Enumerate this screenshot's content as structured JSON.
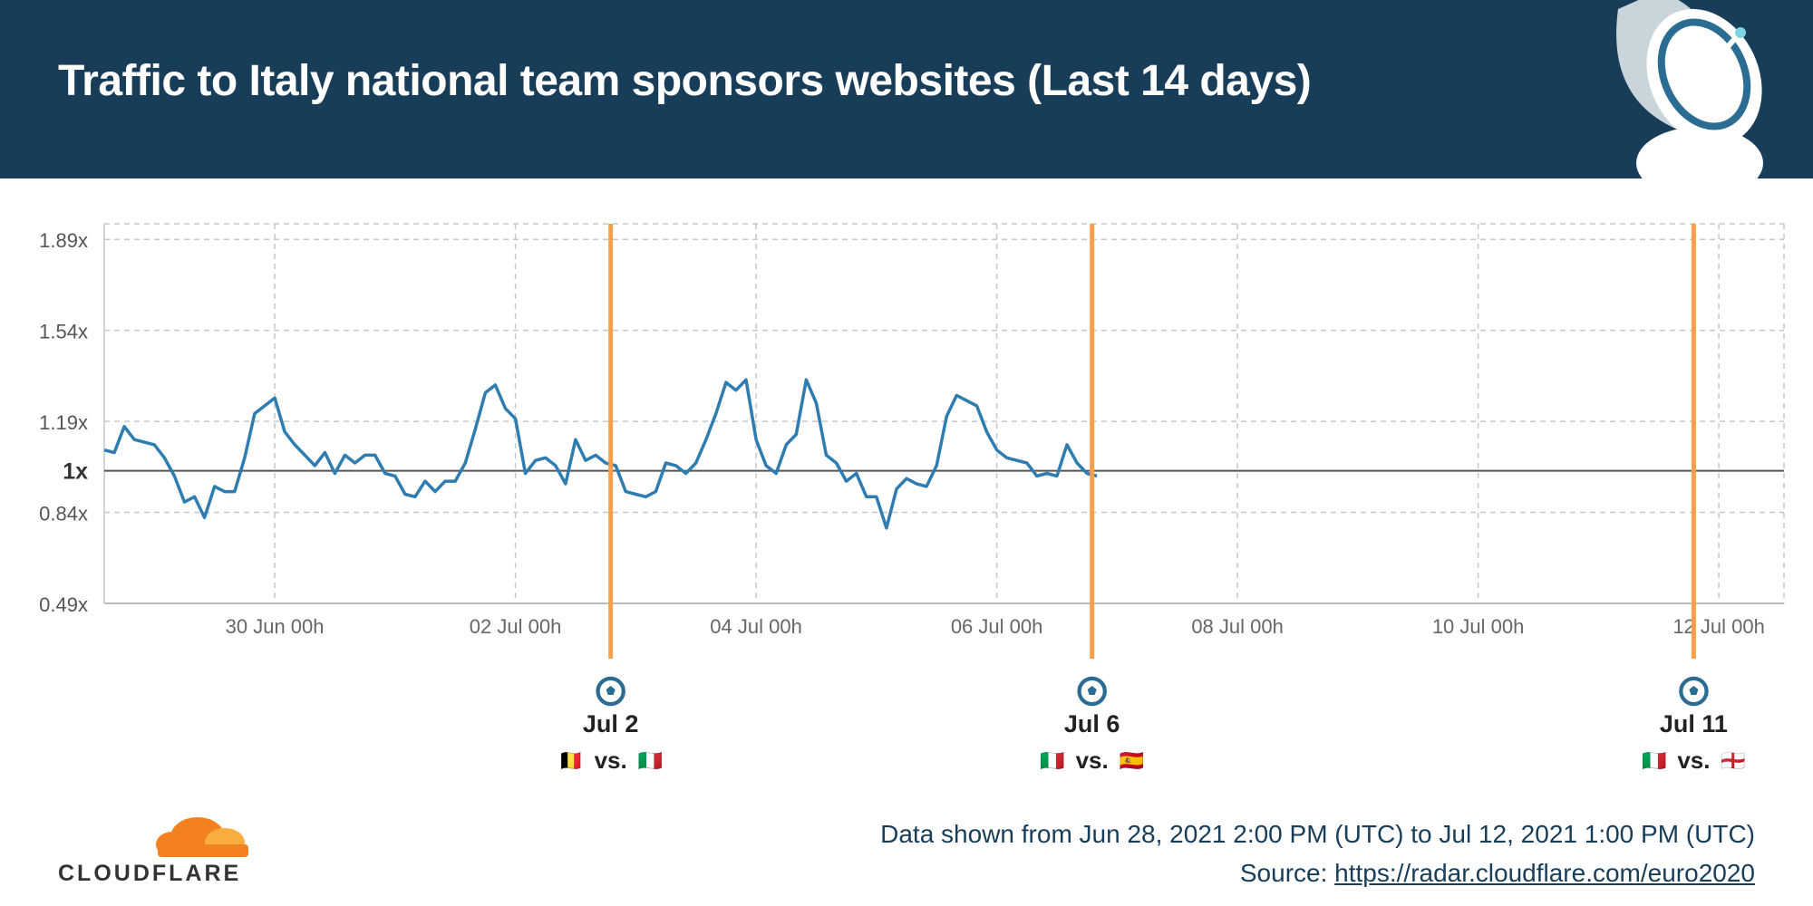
{
  "header": {
    "title": "Traffic to Italy national team sponsors websites (Last 14 days)"
  },
  "colors": {
    "header_bg": "#173d59",
    "series": "#2f7cb0",
    "event_line": "#f6a04d",
    "baseline": "#555555",
    "grid": "#c7c7c7"
  },
  "chart_data": {
    "type": "line",
    "x_label": "",
    "y_label": "",
    "x_start": "2021-06-28 14:00 UTC",
    "x_end": "2021-07-12 13:00 UTC",
    "ylim": [
      0.49,
      1.95
    ],
    "y_ticks": [
      {
        "value": 0.49,
        "label": "0.49x"
      },
      {
        "value": 0.84,
        "label": "0.84x"
      },
      {
        "value": 1.0,
        "label": "1x"
      },
      {
        "value": 1.19,
        "label": "1.19x"
      },
      {
        "value": 1.54,
        "label": "1.54x"
      },
      {
        "value": 1.89,
        "label": "1.89x"
      }
    ],
    "x_ticks": [
      {
        "date": "2021-06-30 00:00",
        "label": "30 Jun 00h"
      },
      {
        "date": "2021-07-02 00:00",
        "label": "02 Jul 00h"
      },
      {
        "date": "2021-07-04 00:00",
        "label": "04 Jul 00h"
      },
      {
        "date": "2021-07-06 00:00",
        "label": "06 Jul 00h"
      },
      {
        "date": "2021-07-08 00:00",
        "label": "08 Jul 00h"
      },
      {
        "date": "2021-07-10 00:00",
        "label": "10 Jul 00h"
      },
      {
        "date": "2021-07-12 00:00",
        "label": "12 Jul 00h"
      }
    ],
    "grid": true,
    "series": [
      {
        "points": [
          [
            "2021-06-28 14:00",
            1.08
          ],
          [
            "2021-06-28 16:00",
            1.07
          ],
          [
            "2021-06-28 18:00",
            1.17
          ],
          [
            "2021-06-28 20:00",
            1.12
          ],
          [
            "2021-06-28 22:00",
            1.11
          ],
          [
            "2021-06-29 00:00",
            1.1
          ],
          [
            "2021-06-29 02:00",
            1.05
          ],
          [
            "2021-06-29 04:00",
            0.98
          ],
          [
            "2021-06-29 06:00",
            0.88
          ],
          [
            "2021-06-29 08:00",
            0.9
          ],
          [
            "2021-06-29 10:00",
            0.82
          ],
          [
            "2021-06-29 12:00",
            0.94
          ],
          [
            "2021-06-29 14:00",
            0.92
          ],
          [
            "2021-06-29 16:00",
            0.92
          ],
          [
            "2021-06-29 18:00",
            1.05
          ],
          [
            "2021-06-29 20:00",
            1.22
          ],
          [
            "2021-06-29 22:00",
            1.25
          ],
          [
            "2021-06-30 00:00",
            1.28
          ],
          [
            "2021-06-30 02:00",
            1.15
          ],
          [
            "2021-06-30 04:00",
            1.1
          ],
          [
            "2021-06-30 06:00",
            1.06
          ],
          [
            "2021-06-30 08:00",
            1.02
          ],
          [
            "2021-06-30 10:00",
            1.07
          ],
          [
            "2021-06-30 12:00",
            0.99
          ],
          [
            "2021-06-30 14:00",
            1.06
          ],
          [
            "2021-06-30 16:00",
            1.03
          ],
          [
            "2021-06-30 18:00",
            1.06
          ],
          [
            "2021-06-30 20:00",
            1.06
          ],
          [
            "2021-06-30 22:00",
            0.99
          ],
          [
            "2021-07-01 00:00",
            0.98
          ],
          [
            "2021-07-01 02:00",
            0.91
          ],
          [
            "2021-07-01 04:00",
            0.9
          ],
          [
            "2021-07-01 06:00",
            0.96
          ],
          [
            "2021-07-01 08:00",
            0.92
          ],
          [
            "2021-07-01 10:00",
            0.96
          ],
          [
            "2021-07-01 12:00",
            0.96
          ],
          [
            "2021-07-01 14:00",
            1.03
          ],
          [
            "2021-07-01 16:00",
            1.16
          ],
          [
            "2021-07-01 18:00",
            1.3
          ],
          [
            "2021-07-01 20:00",
            1.33
          ],
          [
            "2021-07-01 22:00",
            1.24
          ],
          [
            "2021-07-02 00:00",
            1.2
          ],
          [
            "2021-07-02 02:00",
            0.99
          ],
          [
            "2021-07-02 04:00",
            1.04
          ],
          [
            "2021-07-02 06:00",
            1.05
          ],
          [
            "2021-07-02 08:00",
            1.02
          ],
          [
            "2021-07-02 10:00",
            0.95
          ],
          [
            "2021-07-02 12:00",
            1.12
          ],
          [
            "2021-07-02 14:00",
            1.04
          ],
          [
            "2021-07-02 16:00",
            1.06
          ],
          [
            "2021-07-02 18:00",
            1.03
          ],
          [
            "2021-07-02 20:00",
            1.02
          ],
          [
            "2021-07-02 22:00",
            0.92
          ],
          [
            "2021-07-03 00:00",
            0.91
          ],
          [
            "2021-07-03 02:00",
            0.9
          ],
          [
            "2021-07-03 04:00",
            0.92
          ],
          [
            "2021-07-03 06:00",
            1.03
          ],
          [
            "2021-07-03 08:00",
            1.02
          ],
          [
            "2021-07-03 10:00",
            0.99
          ],
          [
            "2021-07-03 12:00",
            1.03
          ],
          [
            "2021-07-03 14:00",
            1.12
          ],
          [
            "2021-07-03 16:00",
            1.22
          ],
          [
            "2021-07-03 18:00",
            1.34
          ],
          [
            "2021-07-03 20:00",
            1.31
          ],
          [
            "2021-07-03 22:00",
            1.35
          ],
          [
            "2021-07-04 00:00",
            1.12
          ],
          [
            "2021-07-04 02:00",
            1.02
          ],
          [
            "2021-07-04 04:00",
            0.99
          ],
          [
            "2021-07-04 06:00",
            1.1
          ],
          [
            "2021-07-04 08:00",
            1.14
          ],
          [
            "2021-07-04 10:00",
            1.35
          ],
          [
            "2021-07-04 12:00",
            1.26
          ],
          [
            "2021-07-04 14:00",
            1.06
          ],
          [
            "2021-07-04 16:00",
            1.03
          ],
          [
            "2021-07-04 18:00",
            0.96
          ],
          [
            "2021-07-04 20:00",
            0.99
          ],
          [
            "2021-07-04 22:00",
            0.9
          ],
          [
            "2021-07-05 00:00",
            0.9
          ],
          [
            "2021-07-05 02:00",
            0.78
          ],
          [
            "2021-07-05 04:00",
            0.93
          ],
          [
            "2021-07-05 06:00",
            0.97
          ],
          [
            "2021-07-05 08:00",
            0.95
          ],
          [
            "2021-07-05 10:00",
            0.94
          ],
          [
            "2021-07-05 12:00",
            1.02
          ],
          [
            "2021-07-05 14:00",
            1.21
          ],
          [
            "2021-07-05 16:00",
            1.29
          ],
          [
            "2021-07-05 18:00",
            1.27
          ],
          [
            "2021-07-05 20:00",
            1.25
          ],
          [
            "2021-07-05 22:00",
            1.15
          ],
          [
            "2021-07-06 00:00",
            1.08
          ],
          [
            "2021-07-06 02:00",
            1.05
          ],
          [
            "2021-07-06 04:00",
            1.04
          ],
          [
            "2021-07-06 06:00",
            1.03
          ],
          [
            "2021-07-06 08:00",
            0.98
          ],
          [
            "2021-07-06 10:00",
            0.99
          ],
          [
            "2021-07-06 12:00",
            0.98
          ],
          [
            "2021-07-06 14:00",
            1.1
          ],
          [
            "2021-07-06 16:00",
            1.03
          ],
          [
            "2021-07-06 18:00",
            0.99
          ],
          [
            "2021-07-06 20:00",
            0.98
          ]
        ]
      }
    ],
    "events": [
      {
        "date": "2021-07-02 19:00",
        "label": "Jul 2",
        "flags": [
          "🇧🇪",
          "🇮🇹"
        ],
        "vs": "vs."
      },
      {
        "date": "2021-07-06 19:00",
        "label": "Jul 6",
        "flags": [
          "🇮🇹",
          "🇪🇸"
        ],
        "vs": "vs."
      },
      {
        "date": "2021-07-11 19:00",
        "label": "Jul 11",
        "flags": [
          "🇮🇹",
          "🏴󠁧󠁢󠁥󠁮󠁧󠁿"
        ],
        "vs": "vs."
      }
    ]
  },
  "footer": {
    "range_text": "Data shown from Jun 28, 2021 2:00 PM (UTC) to Jul 12, 2021 1:00 PM (UTC)",
    "source_label": "Source: ",
    "source_url": "https://radar.cloudflare.com/euro2020",
    "logo_text": "CLOUDFLARE"
  }
}
